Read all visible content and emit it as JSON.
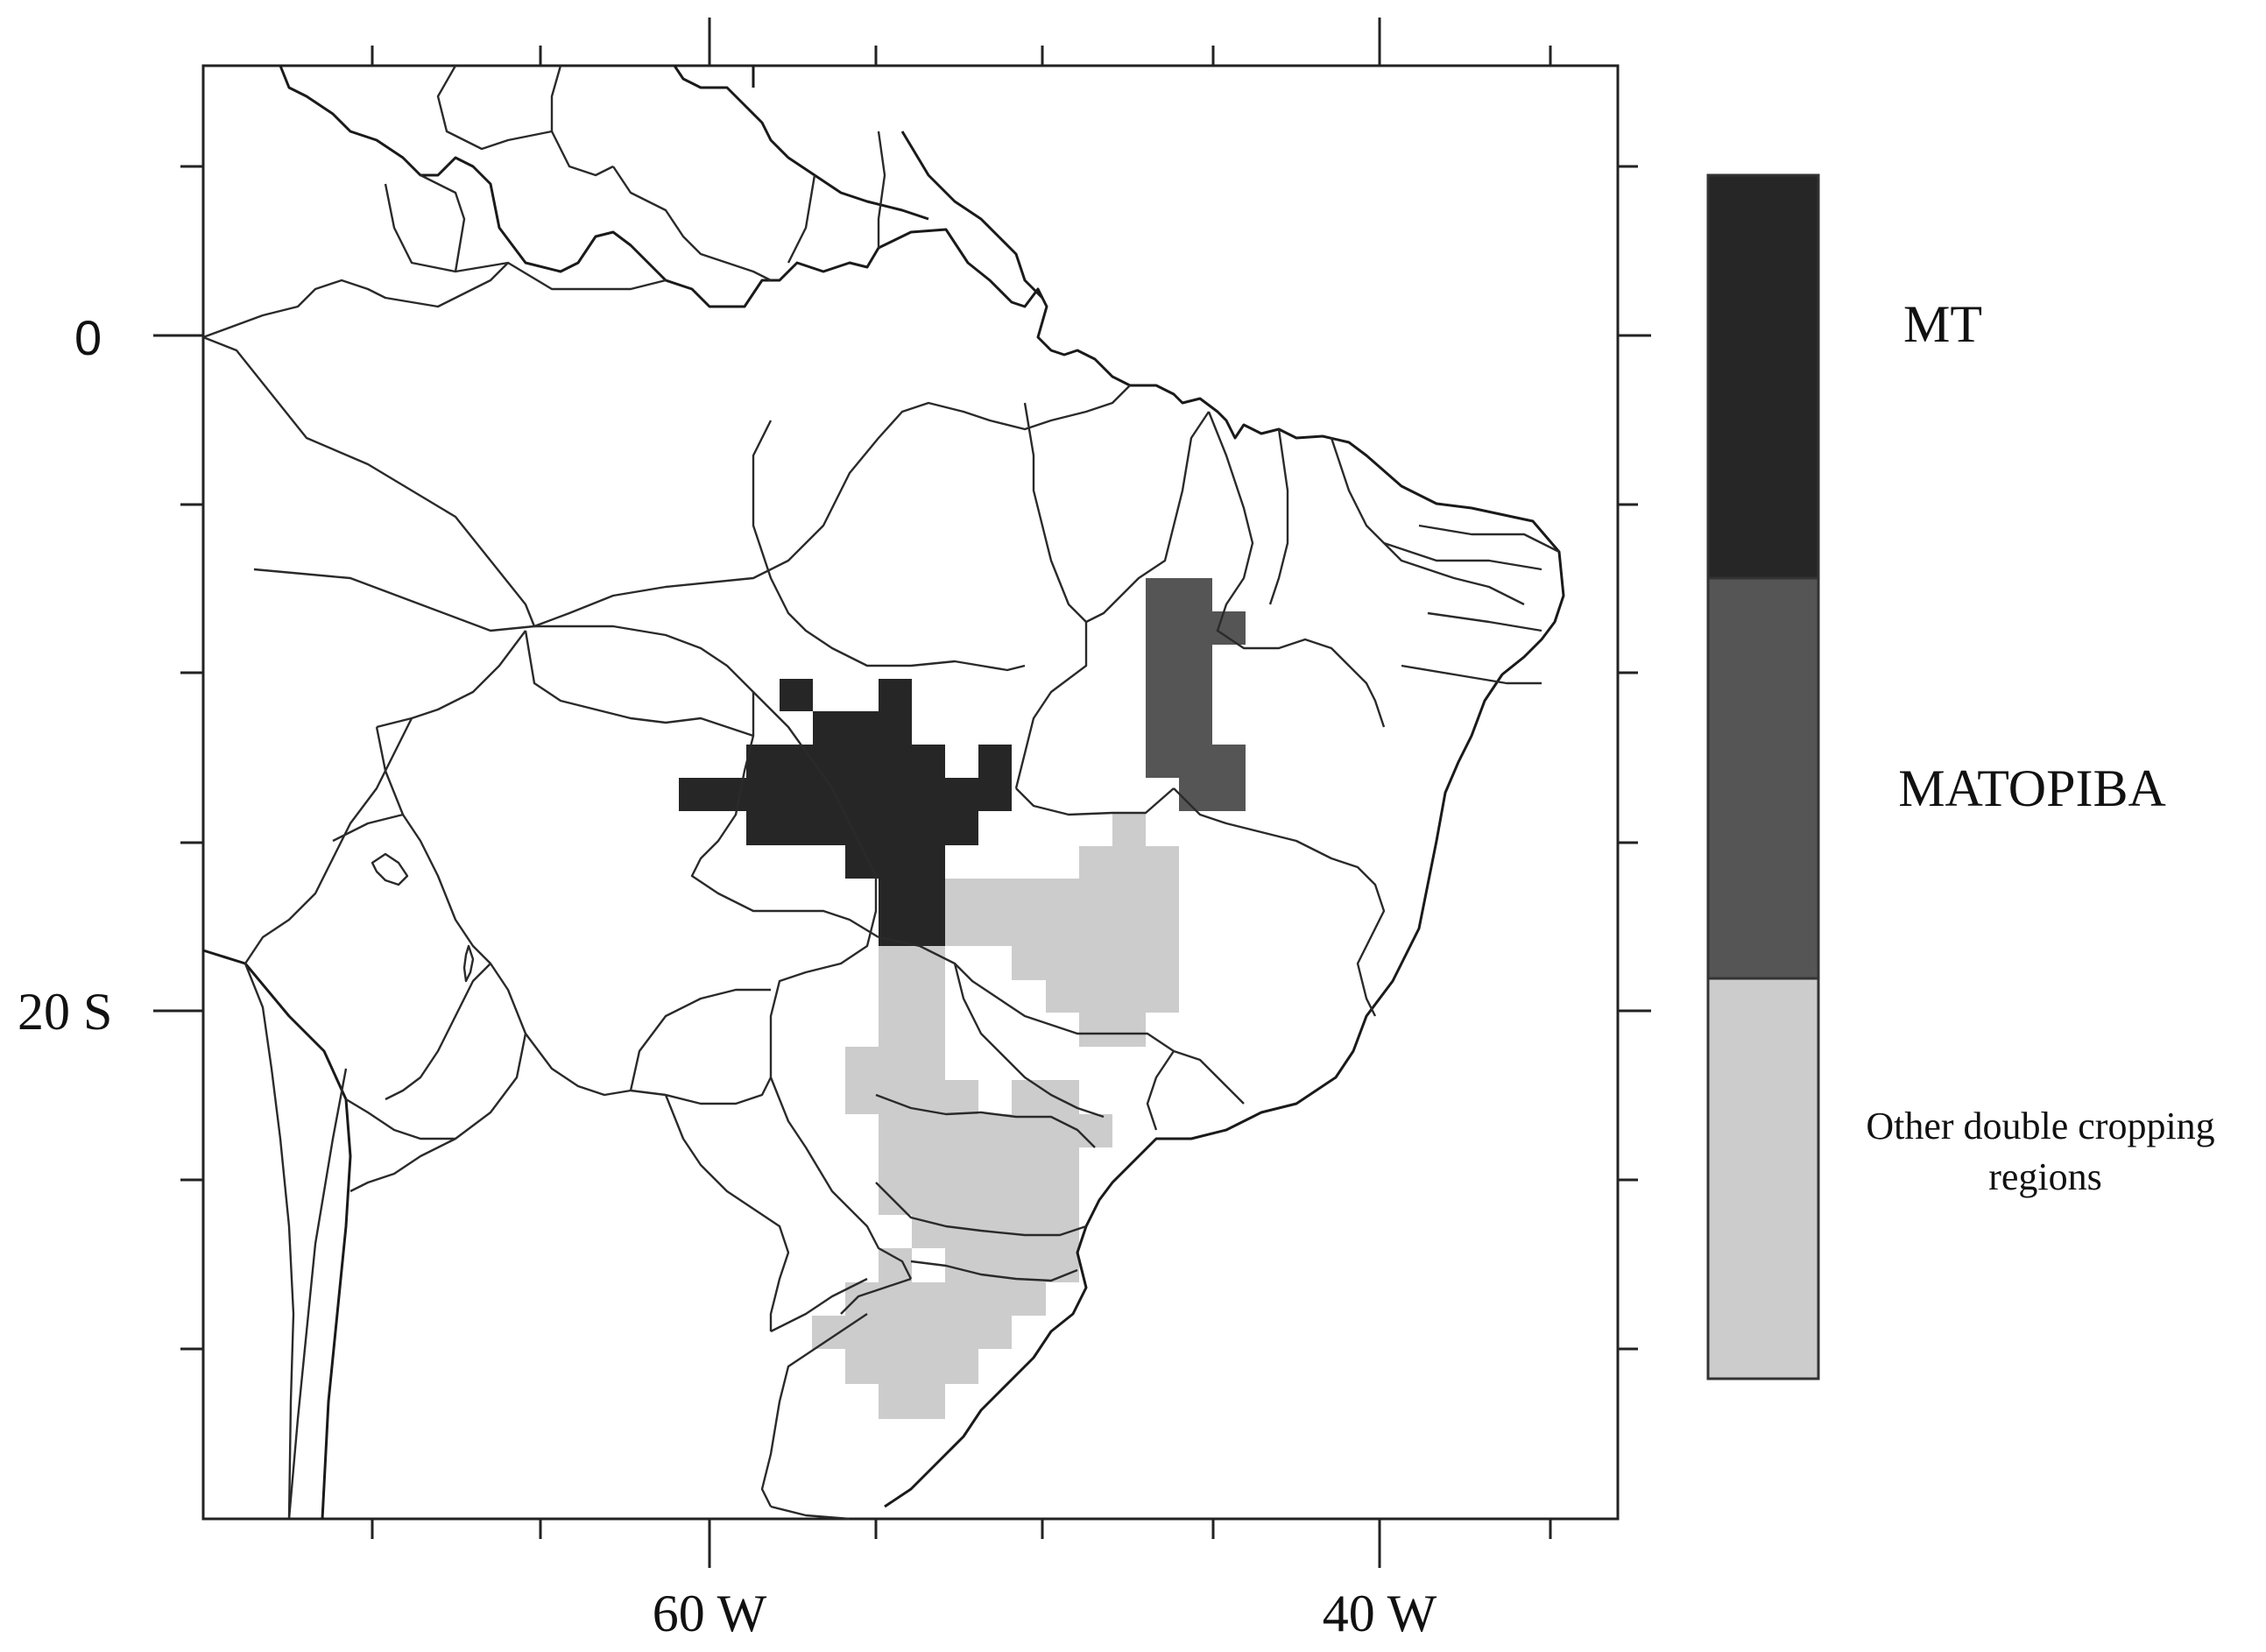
{
  "map": {
    "axes": {
      "lat_ticks": [
        {
          "value": 0,
          "label": "0"
        },
        {
          "value": -20,
          "label": "20 S"
        }
      ],
      "lon_ticks": [
        {
          "value": -60,
          "label": "60 W"
        },
        {
          "value": -40,
          "label": "40 W"
        }
      ],
      "lon_range": [
        -75,
        -33
      ],
      "lat_range": [
        -35,
        8
      ]
    },
    "legend": {
      "items": [
        {
          "label": "MT",
          "color": "#262626"
        },
        {
          "label": "MATOPIBA",
          "color": "#555555"
        },
        {
          "label": "Other double cropping\nregions",
          "color": "#cccccc"
        }
      ]
    },
    "regions": [
      {
        "name": "MT",
        "color": "#262626"
      },
      {
        "name": "MATOPIBA",
        "color": "#555555"
      },
      {
        "name": "Other double cropping regions",
        "color": "#cccccc"
      }
    ]
  }
}
